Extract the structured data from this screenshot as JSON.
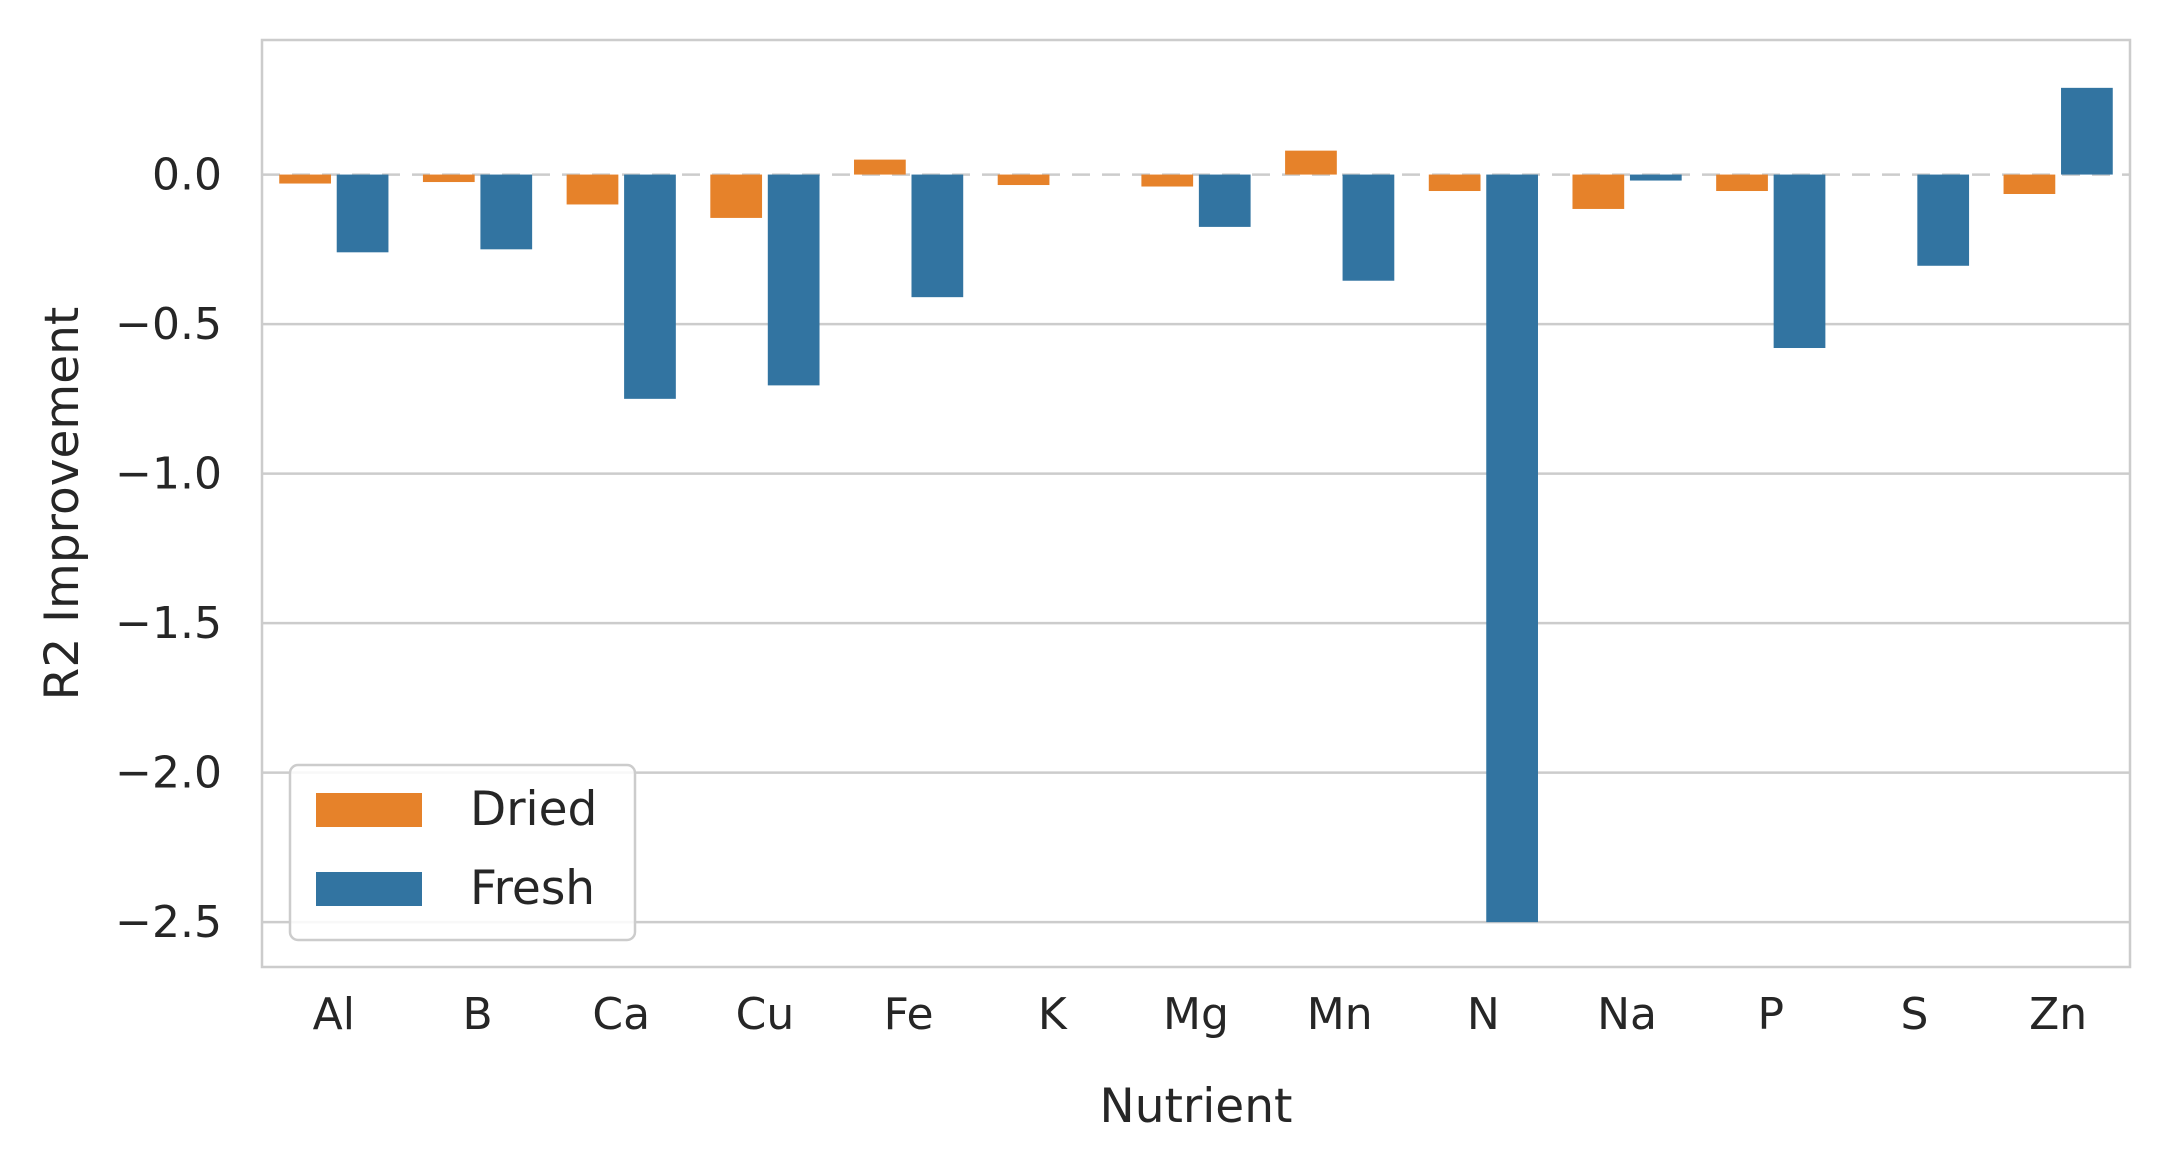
{
  "chart_data": {
    "type": "bar",
    "title": "",
    "xlabel": "Nutrient",
    "ylabel": "R2 Improvement",
    "categories": [
      "Al",
      "B",
      "Ca",
      "Cu",
      "Fe",
      "K",
      "Mg",
      "Mn",
      "N",
      "Na",
      "P",
      "S",
      "Zn"
    ],
    "series": [
      {
        "name": "Dried",
        "color": "#e6822a",
        "values": [
          -0.03,
          -0.025,
          -0.1,
          -0.145,
          0.05,
          -0.035,
          -0.04,
          0.08,
          -0.055,
          -0.115,
          -0.055,
          0.0,
          -0.065
        ]
      },
      {
        "name": "Fresh",
        "color": "#3274a1",
        "values": [
          -0.26,
          -0.25,
          -0.75,
          -0.705,
          -0.41,
          0.0,
          -0.175,
          -0.355,
          -2.5,
          -0.02,
          -0.58,
          -0.305,
          0.29
        ]
      }
    ],
    "ylim": [
      -2.65,
      0.45
    ],
    "yticks": [
      0.0,
      -0.5,
      -1.0,
      -1.5,
      -2.0,
      -2.5
    ],
    "ytick_labels": [
      "0.0",
      "−0.5",
      "−1.0",
      "−1.5",
      "−2.0",
      "−2.5"
    ],
    "grid": true,
    "zero_line": "dashed",
    "legend_position": "lower-left"
  }
}
